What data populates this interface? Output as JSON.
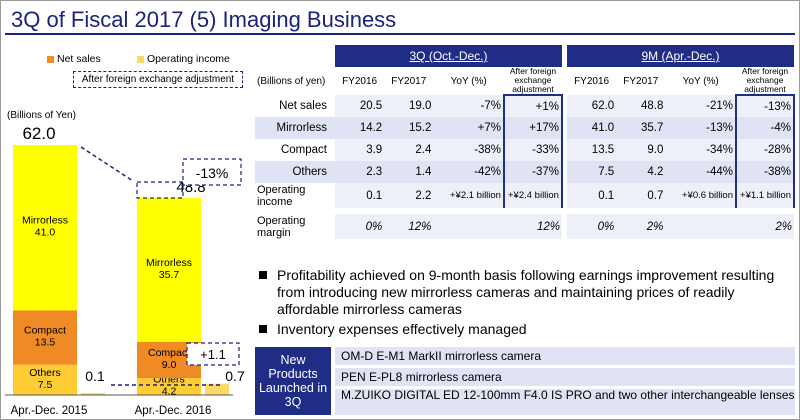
{
  "title": "3Q of Fiscal 2017 (5) Imaging Business",
  "chart_data": {
    "type": "bar",
    "stacked": true,
    "y_unit_label": "(Billions of Yen)",
    "categories": [
      "Apr.-Dec. 2015",
      "Apr.-Dec. 2016"
    ],
    "series": [
      {
        "name": "Mirrorless",
        "values": [
          41.0,
          35.7
        ],
        "color": "#ffff00"
      },
      {
        "name": "Compact",
        "values": [
          13.5,
          9.0
        ],
        "color": "#f08a24"
      },
      {
        "name": "Others",
        "values": [
          7.5,
          4.2
        ],
        "color": "#ffcc33"
      }
    ],
    "totals": [
      62.0,
      48.8
    ],
    "total_labels": [
      "62.0",
      "48.8"
    ],
    "operating_income": [
      0.1,
      0.7
    ],
    "operating_income_labels": [
      "0.1",
      "0.7"
    ],
    "segment_labels": [
      [
        "Mirrorless\n41.0",
        "Compact\n13.5",
        "Others\n7.5"
      ],
      [
        "Mirrorless\n35.7",
        "Compact\n9.0",
        "Others\n4.2"
      ]
    ],
    "annotations": {
      "sales_change": "-13%",
      "income_change": "+1.1"
    },
    "legend": {
      "net_sales": "Net sales",
      "operating_income": "Operating income",
      "adjustment": "After foreign exchange adjustment",
      "net_sales_color": "#f08a24",
      "operating_income_color": "#ffd966"
    }
  },
  "table": {
    "unit": "(Billions of yen)",
    "period_3q": "3Q (Oct.-Dec.)",
    "period_9m": "9M (Apr.-Dec.)",
    "columns": [
      "FY2016",
      "FY2017",
      "YoY (%)",
      "After foreign exchange adjustment"
    ],
    "rows": [
      {
        "label": "Net sales",
        "q": [
          "20.5",
          "19.0",
          "-7%",
          "+1%"
        ],
        "m": [
          "62.0",
          "48.8",
          "-21%",
          "-13%"
        ]
      },
      {
        "label": "Mirrorless",
        "q": [
          "14.2",
          "15.2",
          "+7%",
          "+17%"
        ],
        "m": [
          "41.0",
          "35.7",
          "-13%",
          "-4%"
        ]
      },
      {
        "label": "Compact",
        "q": [
          "3.9",
          "2.4",
          "-38%",
          "-33%"
        ],
        "m": [
          "13.5",
          "9.0",
          "-34%",
          "-28%"
        ]
      },
      {
        "label": "Others",
        "q": [
          "2.3",
          "1.4",
          "-42%",
          "-37%"
        ],
        "m": [
          "7.5",
          "4.2",
          "-44%",
          "-38%"
        ]
      },
      {
        "label": "Operating income",
        "q": [
          "0.1",
          "2.2",
          "+¥2.1 billion",
          "+¥2.4 billion"
        ],
        "m": [
          "0.1",
          "0.7",
          "+¥0.6 billion",
          "+¥1.1 billion"
        ]
      },
      {
        "label": "Operating margin",
        "q": [
          "0%",
          "12%",
          "",
          "12%"
        ],
        "m": [
          "0%",
          "2%",
          "",
          "2%"
        ]
      }
    ]
  },
  "bullets": [
    "Profitability achieved on 9-month basis following earnings improvement resulting from introducing new mirrorless cameras and maintaining prices of readily affordable mirrorless cameras",
    "Inventory expenses effectively managed"
  ],
  "products": {
    "header": "New Products Launched in 3Q",
    "items": [
      "OM-D E-M1 MarkII mirrorless camera",
      "PEN E-PL8 mirrorless camera",
      "M.ZUIKO DIGITAL ED 12-100mm F4.0 IS PRO and two other interchangeable lenses"
    ]
  }
}
